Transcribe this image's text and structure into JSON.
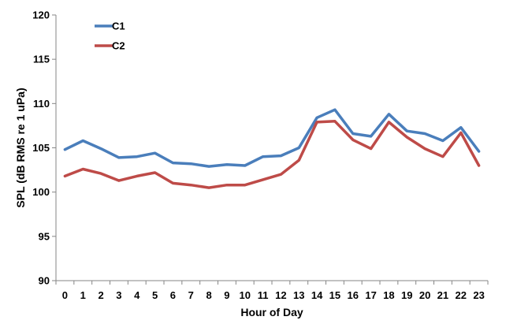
{
  "chart_data": {
    "type": "line",
    "title": "",
    "xlabel": "Hour of Day",
    "ylabel": "SPL (dB RMS re 1 uPa)",
    "x": [
      0,
      1,
      2,
      3,
      4,
      5,
      6,
      7,
      8,
      9,
      10,
      11,
      12,
      13,
      14,
      15,
      16,
      17,
      18,
      19,
      20,
      21,
      22,
      23
    ],
    "ylim": [
      90,
      120
    ],
    "yticks": [
      90,
      95,
      100,
      105,
      110,
      115,
      120
    ],
    "grid": false,
    "legend_position": "top-left",
    "series": [
      {
        "name": "C1",
        "color": "#4a7ebb",
        "values": [
          104.8,
          105.8,
          104.9,
          103.9,
          104.0,
          104.4,
          103.3,
          103.2,
          102.9,
          103.1,
          103.0,
          104.0,
          104.1,
          105.0,
          108.4,
          109.3,
          106.6,
          106.3,
          108.8,
          106.9,
          106.6,
          105.8,
          107.3,
          104.6
        ]
      },
      {
        "name": "C2",
        "color": "#be4b48",
        "values": [
          101.8,
          102.6,
          102.1,
          101.3,
          101.8,
          102.2,
          101.0,
          100.8,
          100.5,
          100.8,
          100.8,
          101.4,
          102.0,
          103.6,
          107.9,
          108.0,
          105.9,
          104.9,
          107.9,
          106.2,
          104.9,
          104.0,
          106.7,
          103.0
        ]
      }
    ]
  }
}
